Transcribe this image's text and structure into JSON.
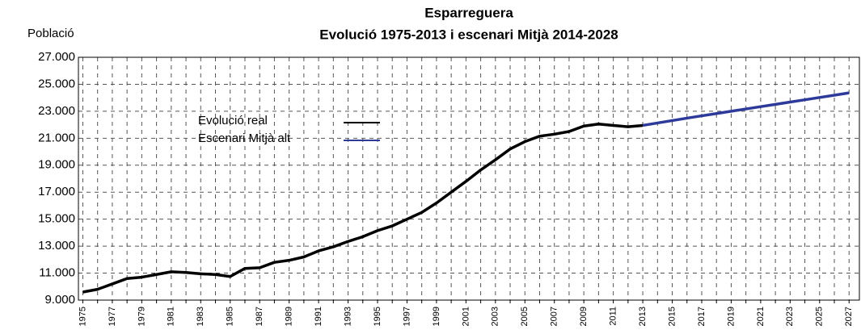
{
  "chart_data": {
    "type": "line",
    "title": "Esparreguera",
    "subtitle": "Evolució 1975-2013 i escenari Mitjà 2014-2028",
    "y_label": "Població",
    "xlim": [
      1974.7,
      2027.7
    ],
    "xticks": [
      1975,
      1977,
      1979,
      1981,
      1983,
      1985,
      1987,
      1989,
      1991,
      1993,
      1995,
      1997,
      1999,
      2001,
      2003,
      2005,
      2007,
      2009,
      2011,
      2013,
      2015,
      2017,
      2019,
      2021,
      2023,
      2025,
      2027
    ],
    "minor_xticks": [
      1976,
      1978,
      1980,
      1982,
      1984,
      1986,
      1988,
      1990,
      1992,
      1994,
      1996,
      1998,
      2000,
      2002,
      2004,
      2006,
      2008,
      2010,
      2012,
      2014,
      2016,
      2018,
      2020,
      2022,
      2024,
      2026
    ],
    "ylim": [
      9000,
      27000
    ],
    "yticks": [
      {
        "value": 9000,
        "label": "9.000"
      },
      {
        "value": 11000,
        "label": "11.000"
      },
      {
        "value": 13000,
        "label": "13.000"
      },
      {
        "value": 15000,
        "label": "15.000"
      },
      {
        "value": 17000,
        "label": "17.000"
      },
      {
        "value": 19000,
        "label": "19.000"
      },
      {
        "value": 21000,
        "label": "21.000"
      },
      {
        "value": 23000,
        "label": "23.000"
      },
      {
        "value": 25000,
        "label": "25.000"
      },
      {
        "value": 27000,
        "label": "27.000"
      }
    ],
    "grid": true,
    "legend_position": "upper left",
    "series": [
      {
        "name": "Evolució real",
        "color": "#000000",
        "x": [
          1975,
          1976,
          1977,
          1978,
          1979,
          1980,
          1981,
          1982,
          1983,
          1984,
          1985,
          1986,
          1987,
          1988,
          1989,
          1990,
          1991,
          1992,
          1993,
          1994,
          1995,
          1996,
          1997,
          1998,
          1999,
          2000,
          2001,
          2002,
          2003,
          2004,
          2005,
          2006,
          2007,
          2008,
          2009,
          2010,
          2011,
          2012,
          2013
        ],
        "values": [
          9600,
          9800,
          10200,
          10600,
          10700,
          10900,
          11100,
          11050,
          10950,
          10900,
          10750,
          11350,
          11400,
          11800,
          11950,
          12200,
          12650,
          12950,
          13350,
          13700,
          14150,
          14500,
          15000,
          15500,
          16200,
          17000,
          17800,
          18650,
          19400,
          20200,
          20750,
          21150,
          21300,
          21500,
          21900,
          22050,
          21950,
          21850,
          21950
        ]
      },
      {
        "name": "Escenari Mitjà alt",
        "color": "#2e3a9a",
        "x": [
          2013,
          2014,
          2015,
          2016,
          2017,
          2018,
          2019,
          2020,
          2021,
          2022,
          2023,
          2024,
          2025,
          2026,
          2027
        ],
        "values": [
          21950,
          22130,
          22310,
          22490,
          22660,
          22830,
          23000,
          23170,
          23340,
          23510,
          23680,
          23850,
          24020,
          24190,
          24360
        ]
      }
    ]
  }
}
